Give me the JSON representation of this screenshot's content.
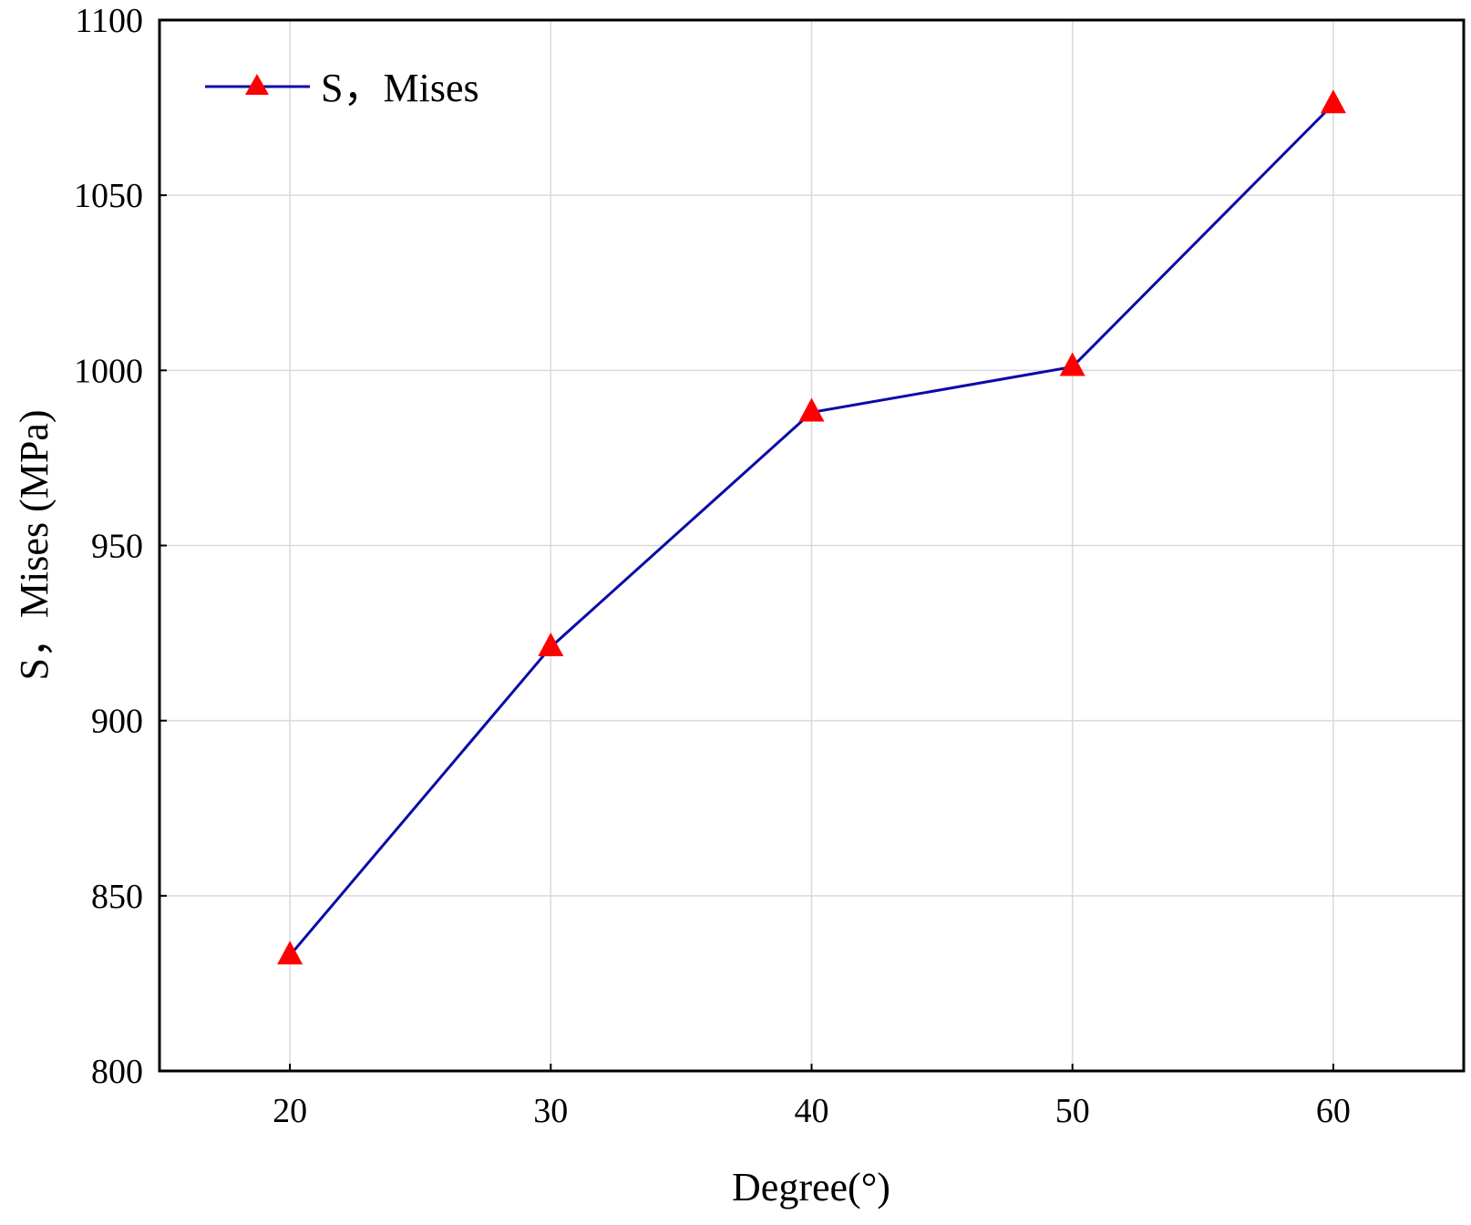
{
  "chart_data": {
    "type": "line",
    "xlabel": "Degree(°)",
    "ylabel": "S，Mises (MPa)",
    "x": [
      20,
      30,
      40,
      50,
      60
    ],
    "series": [
      {
        "name": "S，Mises",
        "values": [
          833,
          921,
          988,
          1001,
          1076
        ]
      }
    ],
    "xlim": [
      15,
      65
    ],
    "ylim": [
      800,
      1100
    ],
    "xticks": [
      "20",
      "30",
      "40",
      "50",
      "60"
    ],
    "yticks": [
      "800",
      "850",
      "900",
      "950",
      "1000",
      "1050",
      "1100"
    ],
    "grid": true,
    "legend": "top-left",
    "colors": {
      "line": "#0a0aa8",
      "marker": "#ff0000"
    }
  }
}
